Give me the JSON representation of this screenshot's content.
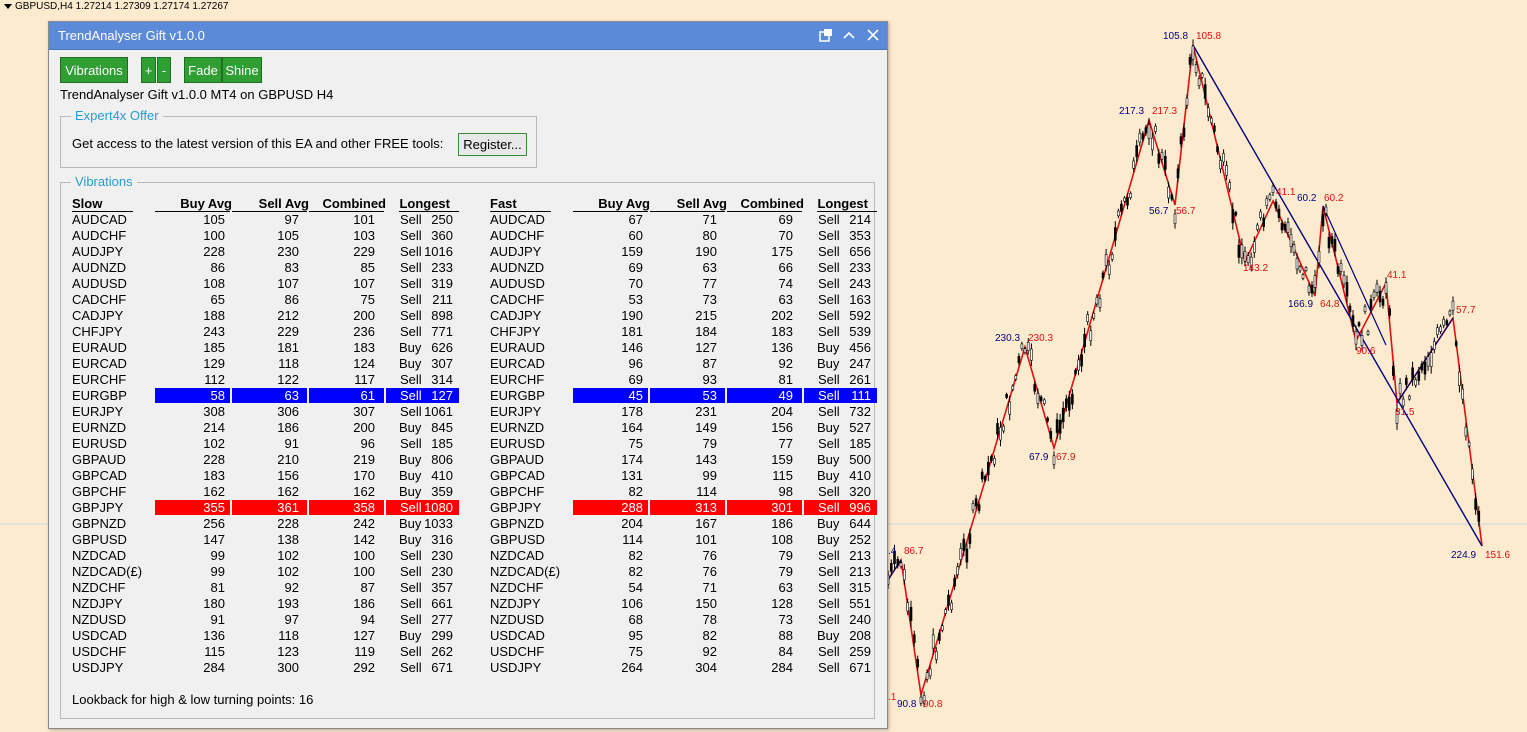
{
  "chart_header": "GBPUSD,H4  1.27214 1.27309 1.27174 1.27267",
  "window": {
    "title": "TrendAnalyser Gift v1.0.0"
  },
  "buttons": {
    "vibrations": "Vibrations",
    "plus": "+",
    "minus": "-",
    "fade": "Fade",
    "shine": "Shine"
  },
  "info_line": "TrendAnalyser Gift v1.0.0 MT4 on GBPUSD H4",
  "offer": {
    "legend": "Expert4x Offer",
    "text": "Get access to the latest version of this EA and other FREE tools:",
    "register": "Register..."
  },
  "vibrations": {
    "legend": "Vibrations",
    "slow_header": [
      "Slow",
      "Buy Avg",
      "Sell Avg",
      "Combined",
      "Longest"
    ],
    "fast_header": [
      "Fast",
      "Buy Avg",
      "Sell Avg",
      "Combined",
      "Longest"
    ],
    "lookback": "Lookback for high & low turning points: 16",
    "rows": [
      {
        "pair": "AUDCAD",
        "slow": [
          105,
          97,
          101,
          "Sell",
          250
        ],
        "fast": [
          67,
          71,
          69,
          "Sell",
          214
        ]
      },
      {
        "pair": "AUDCHF",
        "slow": [
          100,
          105,
          103,
          "Sell",
          360
        ],
        "fast": [
          60,
          80,
          70,
          "Sell",
          353
        ]
      },
      {
        "pair": "AUDJPY",
        "slow": [
          228,
          230,
          229,
          "Sell",
          1016
        ],
        "fast": [
          159,
          190,
          175,
          "Sell",
          656
        ]
      },
      {
        "pair": "AUDNZD",
        "slow": [
          86,
          83,
          85,
          "Sell",
          233
        ],
        "fast": [
          69,
          63,
          66,
          "Sell",
          233
        ]
      },
      {
        "pair": "AUDUSD",
        "slow": [
          108,
          107,
          107,
          "Sell",
          319
        ],
        "fast": [
          70,
          77,
          74,
          "Sell",
          243
        ]
      },
      {
        "pair": "CADCHF",
        "slow": [
          65,
          86,
          75,
          "Sell",
          211
        ],
        "fast": [
          53,
          73,
          63,
          "Sell",
          163
        ]
      },
      {
        "pair": "CADJPY",
        "slow": [
          188,
          212,
          200,
          "Sell",
          898
        ],
        "fast": [
          190,
          215,
          202,
          "Sell",
          592
        ]
      },
      {
        "pair": "CHFJPY",
        "slow": [
          243,
          229,
          236,
          "Sell",
          771
        ],
        "fast": [
          181,
          184,
          183,
          "Sell",
          539
        ]
      },
      {
        "pair": "EURAUD",
        "slow": [
          185,
          181,
          183,
          "Buy",
          626
        ],
        "fast": [
          146,
          127,
          136,
          "Buy",
          456
        ]
      },
      {
        "pair": "EURCAD",
        "slow": [
          129,
          118,
          124,
          "Buy",
          307
        ],
        "fast": [
          96,
          87,
          92,
          "Buy",
          247
        ]
      },
      {
        "pair": "EURCHF",
        "slow": [
          112,
          122,
          117,
          "Sell",
          314
        ],
        "fast": [
          69,
          93,
          81,
          "Sell",
          261
        ]
      },
      {
        "pair": "EURGBP",
        "slow": [
          58,
          63,
          61,
          "Sell",
          127
        ],
        "fast": [
          45,
          53,
          49,
          "Sell",
          111
        ],
        "highlight": "blue"
      },
      {
        "pair": "EURJPY",
        "slow": [
          308,
          306,
          307,
          "Sell",
          1061
        ],
        "fast": [
          178,
          231,
          204,
          "Sell",
          732
        ]
      },
      {
        "pair": "EURNZD",
        "slow": [
          214,
          186,
          200,
          "Buy",
          845
        ],
        "fast": [
          164,
          149,
          156,
          "Buy",
          527
        ]
      },
      {
        "pair": "EURUSD",
        "slow": [
          102,
          91,
          96,
          "Sell",
          185
        ],
        "fast": [
          75,
          79,
          77,
          "Sell",
          185
        ]
      },
      {
        "pair": "GBPAUD",
        "slow": [
          228,
          210,
          219,
          "Buy",
          806
        ],
        "fast": [
          174,
          143,
          159,
          "Buy",
          500
        ]
      },
      {
        "pair": "GBPCAD",
        "slow": [
          183,
          156,
          170,
          "Buy",
          410
        ],
        "fast": [
          131,
          99,
          115,
          "Buy",
          410
        ]
      },
      {
        "pair": "GBPCHF",
        "slow": [
          162,
          162,
          162,
          "Buy",
          359
        ],
        "fast": [
          82,
          114,
          98,
          "Sell",
          320
        ]
      },
      {
        "pair": "GBPJPY",
        "slow": [
          355,
          361,
          358,
          "Sell",
          1080
        ],
        "fast": [
          288,
          313,
          301,
          "Sell",
          996
        ],
        "highlight": "red"
      },
      {
        "pair": "GBPNZD",
        "slow": [
          256,
          228,
          242,
          "Buy",
          1033
        ],
        "fast": [
          204,
          167,
          186,
          "Buy",
          644
        ]
      },
      {
        "pair": "GBPUSD",
        "slow": [
          147,
          138,
          142,
          "Buy",
          316
        ],
        "fast": [
          114,
          101,
          108,
          "Buy",
          252
        ]
      },
      {
        "pair": "NZDCAD",
        "slow": [
          99,
          102,
          100,
          "Sell",
          230
        ],
        "fast": [
          82,
          76,
          79,
          "Sell",
          213
        ]
      },
      {
        "pair": "NZDCAD(£)",
        "slow": [
          99,
          102,
          100,
          "Sell",
          230
        ],
        "fast": [
          82,
          76,
          79,
          "Sell",
          213
        ]
      },
      {
        "pair": "NZDCHF",
        "slow": [
          81,
          92,
          87,
          "Sell",
          357
        ],
        "fast": [
          54,
          71,
          63,
          "Sell",
          315
        ]
      },
      {
        "pair": "NZDJPY",
        "slow": [
          180,
          193,
          186,
          "Sell",
          661
        ],
        "fast": [
          106,
          150,
          128,
          "Sell",
          551
        ]
      },
      {
        "pair": "NZDUSD",
        "slow": [
          91,
          97,
          94,
          "Sell",
          277
        ],
        "fast": [
          68,
          78,
          73,
          "Sell",
          240
        ]
      },
      {
        "pair": "USDCAD",
        "slow": [
          136,
          118,
          127,
          "Buy",
          299
        ],
        "fast": [
          95,
          82,
          88,
          "Buy",
          208
        ]
      },
      {
        "pair": "USDCHF",
        "slow": [
          115,
          123,
          119,
          "Sell",
          262
        ],
        "fast": [
          75,
          92,
          84,
          "Sell",
          259
        ]
      },
      {
        "pair": "USDJPY",
        "slow": [
          284,
          300,
          292,
          "Sell",
          671
        ],
        "fast": [
          264,
          304,
          284,
          "Sell",
          671
        ]
      }
    ]
  },
  "zigzag_labels": {
    "red": [
      "105.8",
      "217.3",
      "56.7",
      "41.1",
      "60.2",
      "143.2",
      "64.8",
      "41.1",
      "90.6",
      "57.7",
      "81.5",
      "151.6",
      "230.3",
      "67.9",
      "86.7",
      "90.8",
      ".1"
    ],
    "navy": [
      "105.8",
      "217.3",
      "56.7",
      "60.2",
      "166.9",
      "230.3",
      "67.9",
      "224.9",
      "90.8",
      ".4"
    ]
  },
  "colors": {
    "zigzag_red": "#e01010",
    "zigzag_navy": "#000080",
    "chart_bg": "#fdebd0",
    "highlight_blue": "#0000ff",
    "highlight_red": "#ff0000",
    "button_green": "#2f9e33"
  }
}
